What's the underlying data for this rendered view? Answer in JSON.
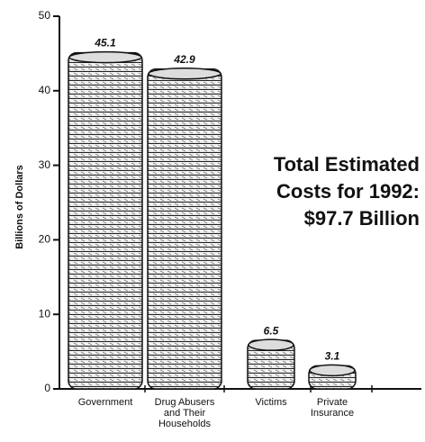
{
  "chart_data": {
    "type": "bar",
    "y_label": "Billions of Dollars",
    "annotation": "Total Estimated\nCosts for 1992:\n$97.7 Billion",
    "categories": [
      "Government",
      "Drug Abusers\nand Their\nHouseholds",
      "Victims",
      "Private\nInsurance"
    ],
    "values": [
      45.1,
      42.9,
      6.5,
      3.1
    ],
    "color": "#f4f4f4",
    "ylim": [
      0,
      50
    ],
    "yticks": [
      0,
      10,
      20,
      30,
      40,
      50
    ],
    "grid": false
  }
}
